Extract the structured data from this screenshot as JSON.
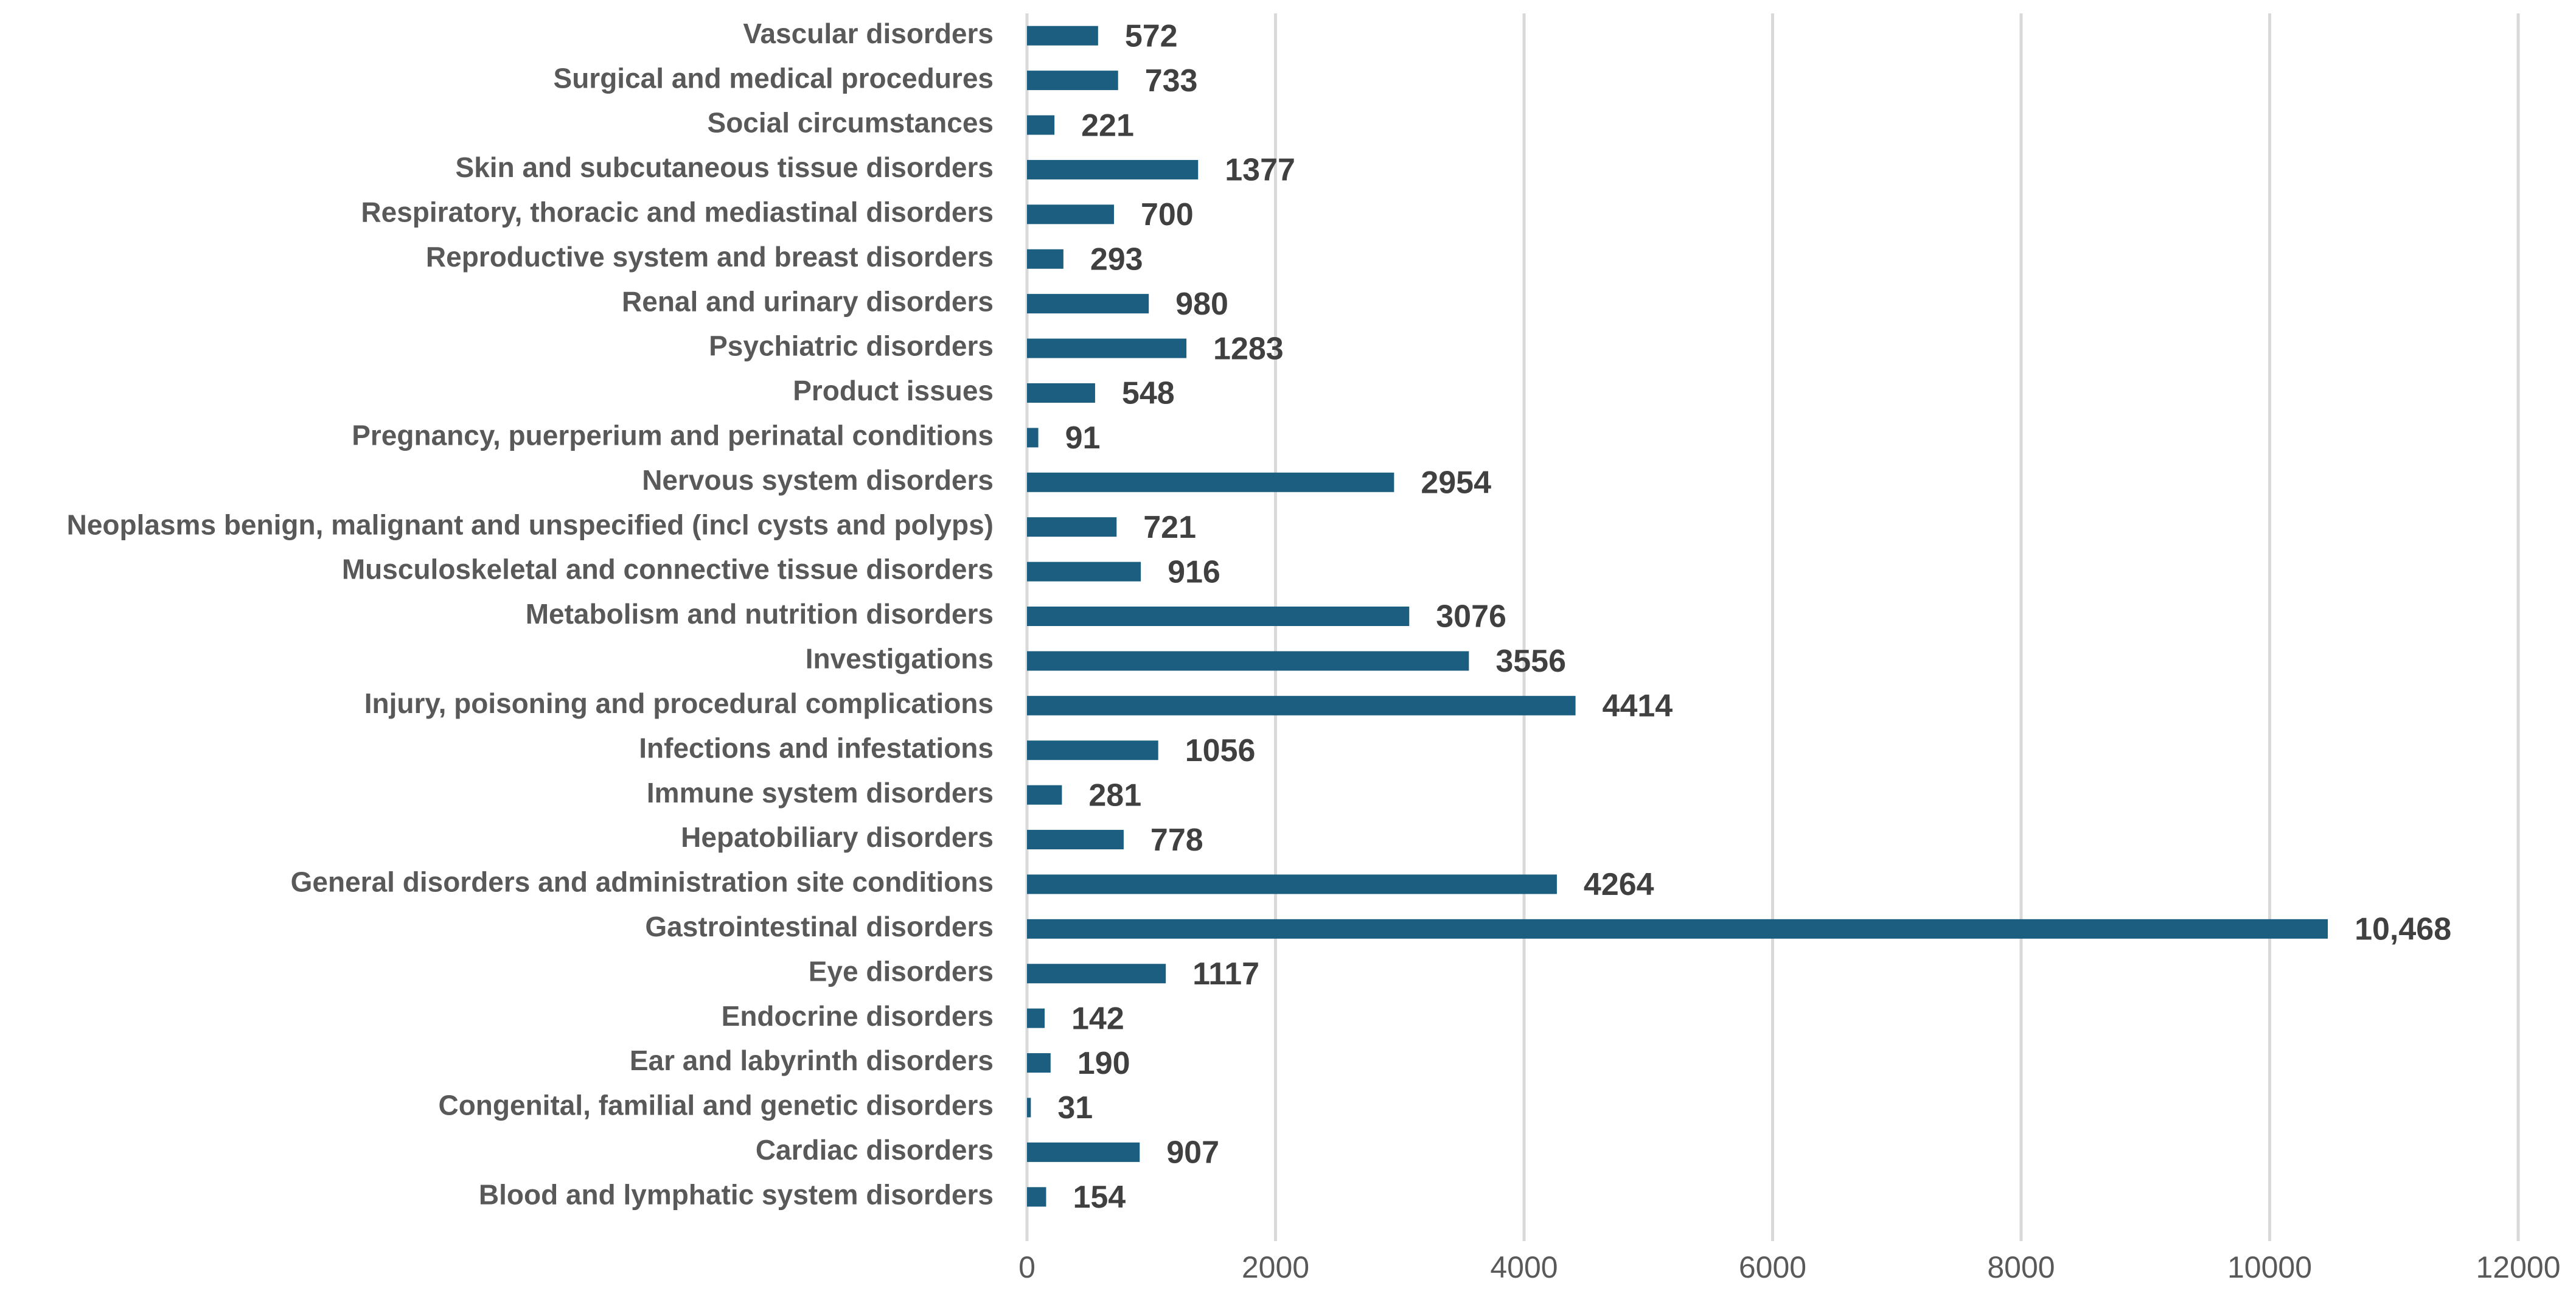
{
  "chart_data": {
    "type": "bar",
    "orientation": "horizontal",
    "categories": [
      "Vascular disorders",
      "Surgical and medical procedures",
      "Social circumstances",
      "Skin and subcutaneous tissue disorders",
      "Respiratory, thoracic and mediastinal disorders",
      "Reproductive system and breast disorders",
      "Renal and urinary disorders",
      "Psychiatric disorders",
      "Product issues",
      "Pregnancy, puerperium and perinatal conditions",
      "Nervous system disorders",
      "Neoplasms benign, malignant and unspecified (incl cysts and polyps)",
      "Musculoskeletal and connective tissue disorders",
      "Metabolism and nutrition disorders",
      "Investigations",
      "Injury, poisoning and procedural complications",
      "Infections and infestations",
      "Immune system disorders",
      "Hepatobiliary disorders",
      "General disorders and administration site conditions",
      "Gastrointestinal disorders",
      "Eye disorders",
      "Endocrine disorders",
      "Ear and labyrinth disorders",
      "Congenital, familial and genetic disorders",
      "Cardiac disorders",
      "Blood and lymphatic system disorders"
    ],
    "values": [
      572,
      733,
      221,
      1377,
      700,
      293,
      980,
      1283,
      548,
      91,
      2954,
      721,
      916,
      3076,
      3556,
      4414,
      1056,
      281,
      778,
      4264,
      10468,
      1117,
      142,
      190,
      31,
      907,
      154
    ],
    "value_labels": [
      "572",
      "733",
      "221",
      "1377",
      "700",
      "293",
      "980",
      "1283",
      "548",
      "91",
      "2954",
      "721",
      "916",
      "3076",
      "3556",
      "4414",
      "1056",
      "281",
      "778",
      "4264",
      "10,468",
      "1117",
      "142",
      "190",
      "31",
      "907",
      "154"
    ],
    "color": "#1b5e80",
    "xlim": [
      0,
      12000
    ],
    "xticks": [
      0,
      2000,
      4000,
      6000,
      8000,
      10000,
      12000
    ],
    "grid": true
  }
}
